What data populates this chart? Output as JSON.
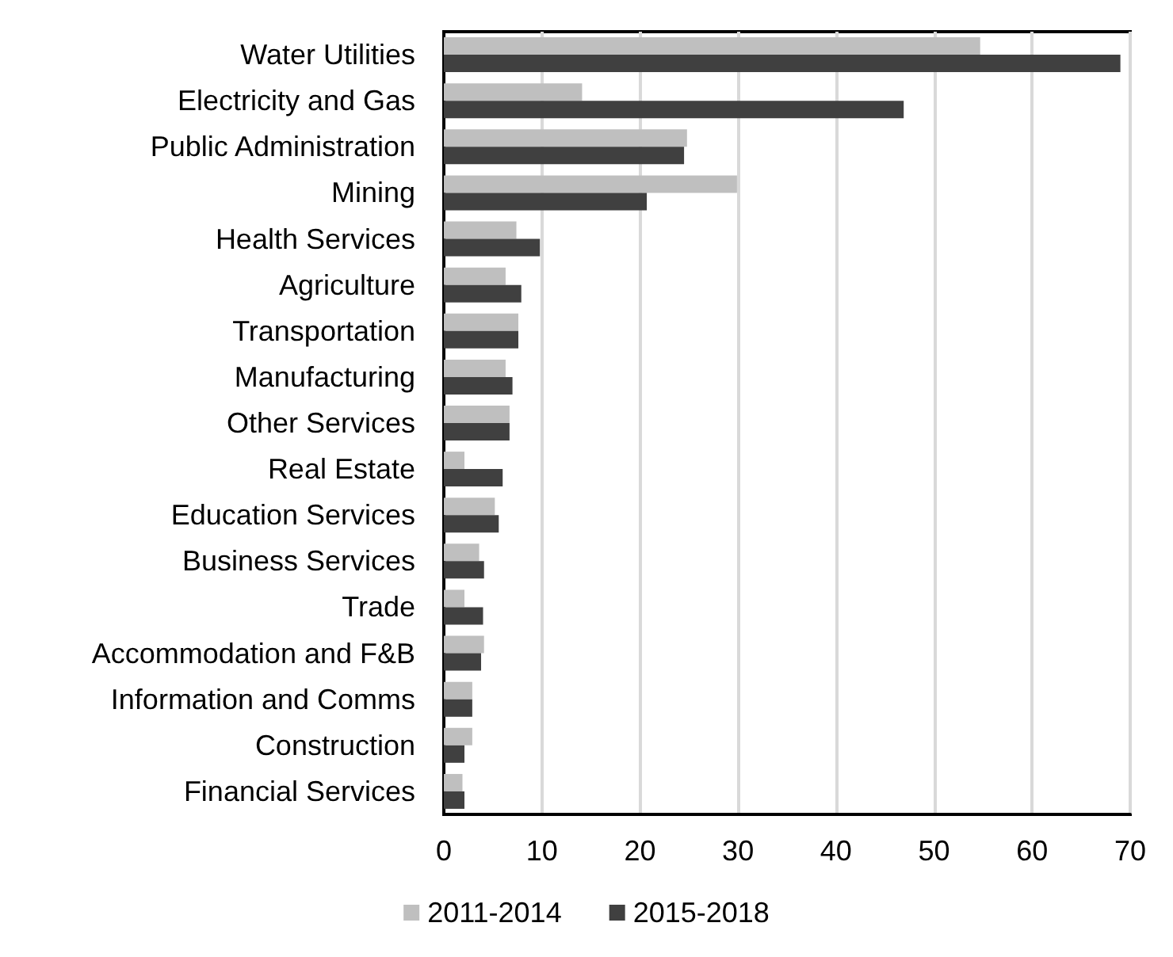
{
  "chart_data": {
    "type": "bar",
    "orientation": "horizontal",
    "categories": [
      "Water Utilities",
      "Electricity and Gas",
      "Public Administration",
      "Mining",
      "Health Services",
      "Agriculture",
      "Transportation",
      "Manufacturing",
      "Other Services",
      "Real Estate",
      "Education Services",
      "Business Services",
      "Trade",
      "Accommodation and F&B",
      "Information and Comms",
      "Construction",
      "Financial Services"
    ],
    "series": [
      {
        "name": "2011-2014",
        "color": "#bfbfbf",
        "values": [
          54.7,
          14.1,
          24.8,
          29.9,
          7.4,
          6.3,
          7.6,
          6.3,
          6.7,
          2.1,
          5.2,
          3.6,
          2.1,
          4.1,
          2.9,
          2.9,
          1.9
        ]
      },
      {
        "name": "2015-2018",
        "color": "#404040",
        "values": [
          69.0,
          46.9,
          24.5,
          20.7,
          9.8,
          7.9,
          7.6,
          7.0,
          6.7,
          6.0,
          5.6,
          4.1,
          4.0,
          3.8,
          2.9,
          2.1,
          2.1
        ]
      }
    ],
    "xlim": [
      0,
      70
    ],
    "xticks": [
      0,
      10,
      20,
      30,
      40,
      50,
      60,
      70
    ],
    "grid": "x",
    "legend": "bottom"
  }
}
